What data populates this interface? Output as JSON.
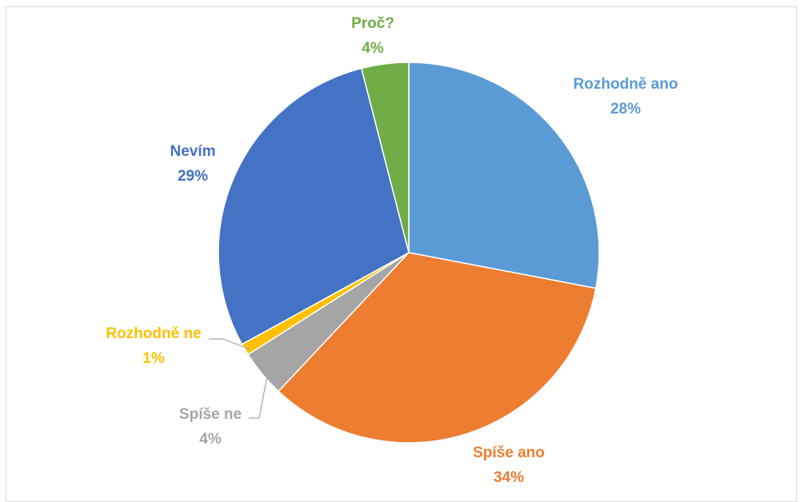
{
  "chart_data": {
    "type": "pie",
    "title": "",
    "start_angle_deg": 0,
    "direction": "clockwise",
    "slices": [
      {
        "label": "Rozhodně ano",
        "pct_label": "28%",
        "value": 28,
        "color": "#5b9bd5"
      },
      {
        "label": "Spíše ano",
        "pct_label": "34%",
        "value": 34,
        "color": "#ed7d31"
      },
      {
        "label": "Spíše ne",
        "pct_label": "4%",
        "value": 4,
        "color": "#a5a5a5"
      },
      {
        "label": "Rozhodně ne",
        "pct_label": "1%",
        "value": 1,
        "color": "#ffc000"
      },
      {
        "label": "Nevím",
        "pct_label": "29%",
        "value": 29,
        "color": "#4472c4"
      },
      {
        "label": "Proč?",
        "pct_label": "4%",
        "value": 4,
        "color": "#70ad47"
      }
    ],
    "legend": "none",
    "leader_lines": [
      "Spíše ne",
      "Rozhodně ne"
    ]
  }
}
